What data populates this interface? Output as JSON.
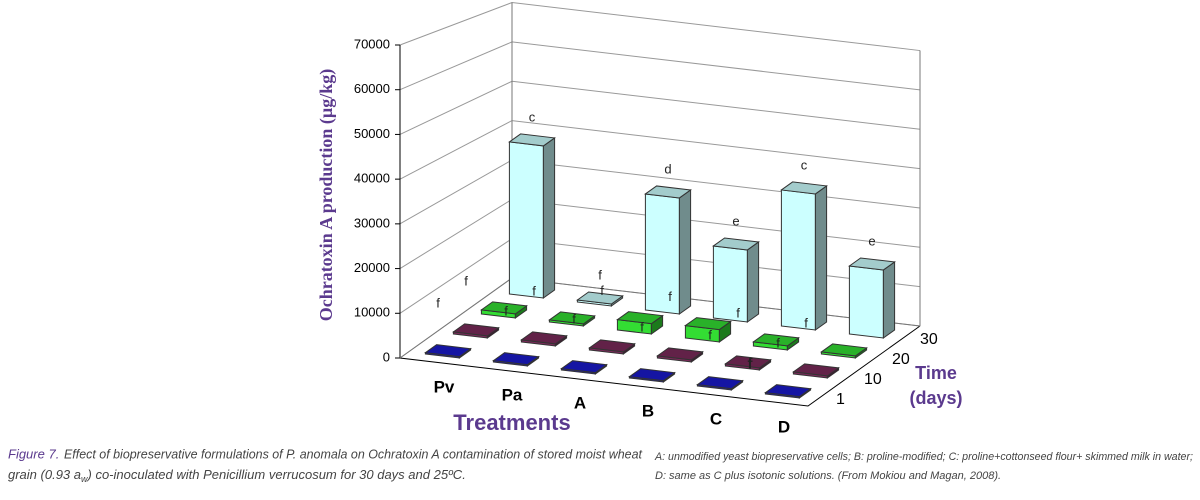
{
  "chart_data": {
    "type": "bar3d",
    "y_label": "Ochratoxin A production (µg/kg)",
    "x_label": "Treatments",
    "z_label": [
      "Time",
      "(days)"
    ],
    "categories": [
      "Pv",
      "Pa",
      "A",
      "B",
      "C",
      "D"
    ],
    "ylim": [
      0,
      70000
    ],
    "yticks": [
      0,
      10000,
      20000,
      30000,
      40000,
      50000,
      60000,
      70000
    ],
    "grid": true,
    "series": [
      {
        "name": "1",
        "color": "#1a1acc",
        "values": [
          300,
          300,
          300,
          300,
          300,
          300
        ],
        "letters": [
          null,
          null,
          null,
          null,
          null,
          "f"
        ]
      },
      {
        "name": "10",
        "color": "#7a2a5a",
        "values": [
          500,
          500,
          500,
          500,
          500,
          500
        ],
        "letters": [
          "f",
          "f",
          "f",
          "f",
          "f",
          "f"
        ]
      },
      {
        "name": "20",
        "color": "#33dd33",
        "values": [
          1000,
          500,
          2500,
          3000,
          1000,
          500
        ],
        "letters": [
          "f",
          "f",
          "f",
          "f",
          "f",
          "f"
        ]
      },
      {
        "name": "30",
        "color": "#ccffff",
        "values": [
          38000,
          500,
          29000,
          18000,
          34000,
          17000
        ],
        "letters": [
          "c",
          "f",
          "d",
          "e",
          "c",
          "e"
        ]
      }
    ]
  },
  "caption": {
    "label": "Figure 7.",
    "line1": "Effect of biopreservative formulations of P. anomala on Ochratoxin A contamination of stored moist wheat",
    "line2_parts": [
      "grain (0.93 a",
      "w",
      ") co-inoculated with Penicillium verrucosum for 30 days and 25ºC."
    ]
  },
  "footnote": {
    "line1": "A: unmodified yeast biopreservative cells; B: proline-modified; C: proline+cottonseed flour+ skimmed milk in water;",
    "line2": "D: same as C plus isotonic solutions. (From Mokiou and Magan, 2008)."
  }
}
